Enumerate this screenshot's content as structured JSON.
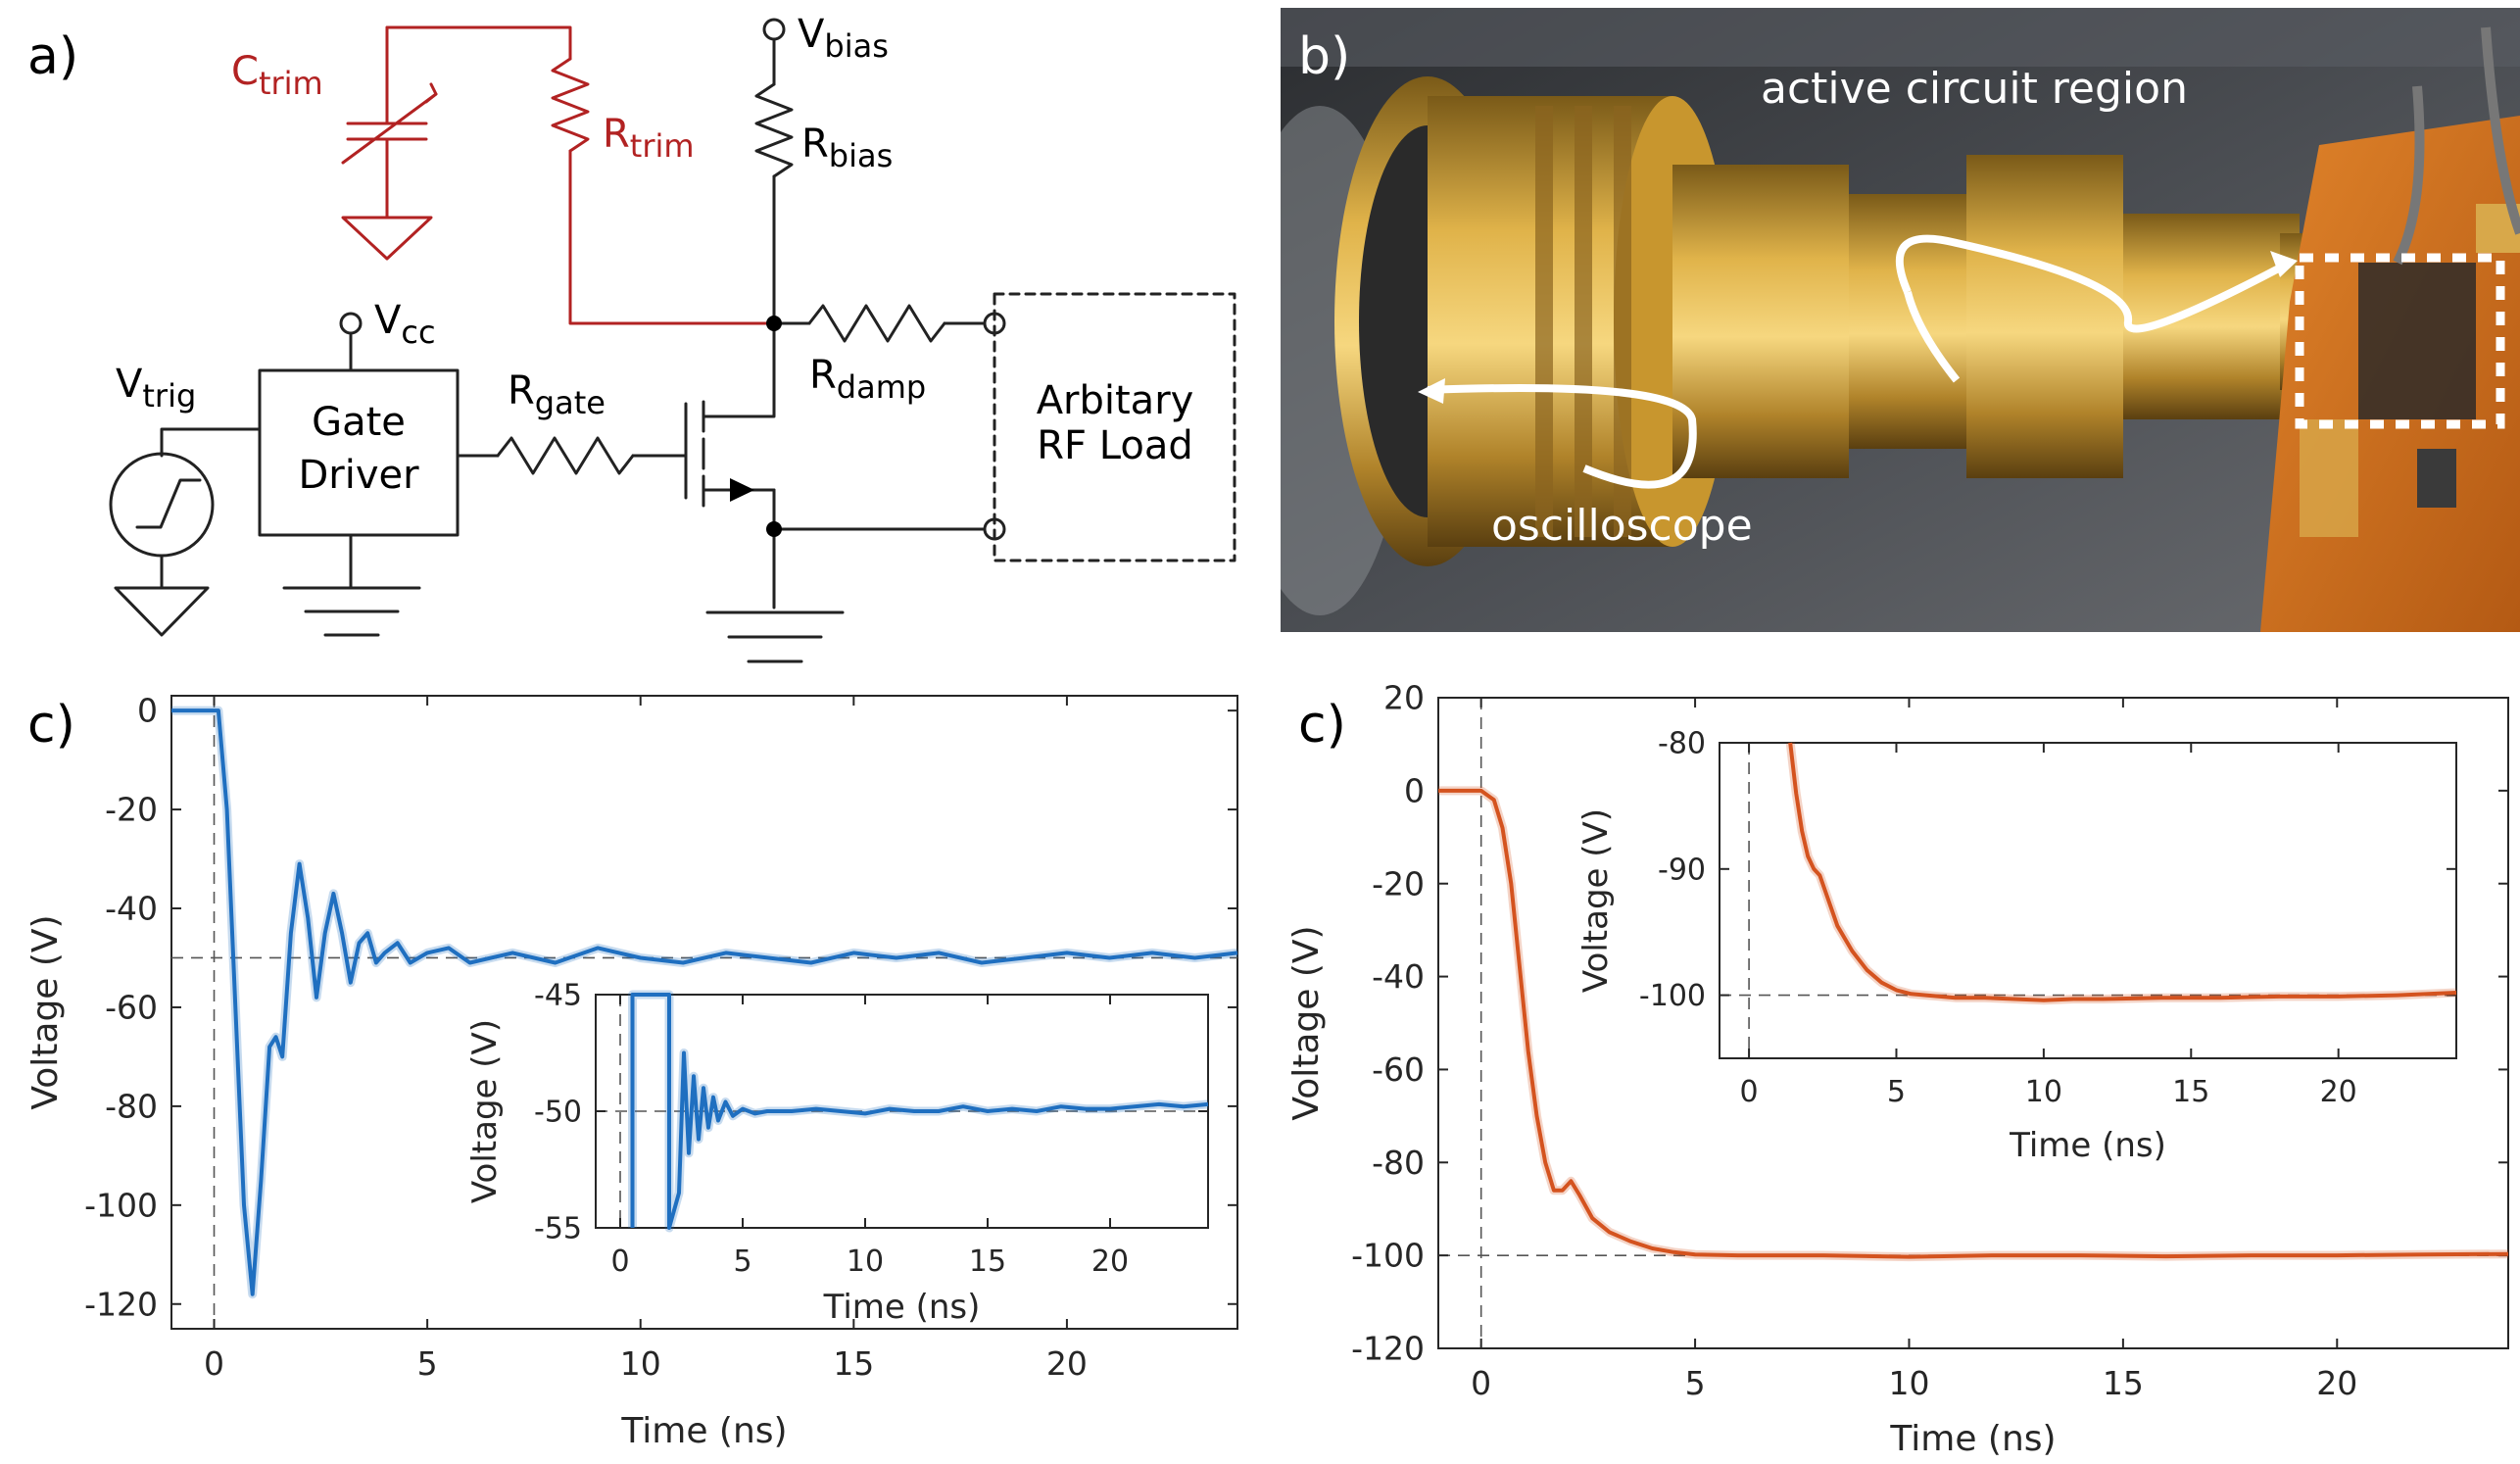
{
  "panels": {
    "a": "a)",
    "b": "b)",
    "c_left": "c)",
    "c_right": "c)"
  },
  "schematic": {
    "c_trim": {
      "main": "C",
      "sub": "trim"
    },
    "r_trim": {
      "main": "R",
      "sub": "trim"
    },
    "v_bias": {
      "main": "V",
      "sub": "bias"
    },
    "r_bias": {
      "main": "R",
      "sub": "bias"
    },
    "v_cc": {
      "main": "V",
      "sub": "cc"
    },
    "v_trig": {
      "main": "V",
      "sub": "trig"
    },
    "gate_driver": [
      "Gate",
      "Driver"
    ],
    "r_gate": {
      "main": "R",
      "sub": "gate"
    },
    "r_damp": {
      "main": "R",
      "sub": "damp"
    },
    "load": [
      "Arbitary",
      "RF Load"
    ],
    "colors": {
      "trim": "#b22222",
      "wire": "#222222"
    }
  },
  "photo": {
    "label_active": "active circuit region",
    "label_scope": "oscilloscope",
    "icon": "circuit-board-photo"
  },
  "chart_data": [
    {
      "type": "line",
      "id": "left-main",
      "xlabel": "Time (ns)",
      "ylabel": "Voltage (V)",
      "xlim": [
        -1,
        24
      ],
      "ylim": [
        -125,
        3
      ],
      "xticks": [
        0,
        5,
        10,
        15,
        20
      ],
      "yticks": [
        0,
        -20,
        -40,
        -60,
        -80,
        -100,
        -120
      ],
      "color": "#1f6fc0",
      "reference_lines": {
        "x": 0,
        "y": -50
      },
      "series": [
        {
          "x": [
            -1,
            -0.2,
            0.1,
            0.3,
            0.5,
            0.7,
            0.9,
            1.1,
            1.3,
            1.45,
            1.6,
            1.8,
            2.0,
            2.2,
            2.4,
            2.6,
            2.8,
            3.0,
            3.2,
            3.4,
            3.6,
            3.8,
            4.0,
            4.3,
            4.6,
            5.0,
            5.5,
            6,
            7,
            8,
            9,
            10,
            11,
            12,
            13,
            14,
            15,
            16,
            17,
            18,
            19,
            20,
            21,
            22,
            23,
            24
          ],
          "y": [
            0,
            0,
            0,
            -20,
            -60,
            -100,
            -118,
            -95,
            -68,
            -66,
            -70,
            -45,
            -31,
            -42,
            -58,
            -45,
            -37,
            -45,
            -55,
            -47,
            -45,
            -51,
            -49,
            -47,
            -51,
            -49,
            -48,
            -51,
            -49,
            -51,
            -48,
            -50,
            -51,
            -49,
            -50,
            -51,
            -49,
            -50,
            -49,
            -51,
            -50,
            -49,
            -50,
            -49,
            -50,
            -49
          ]
        }
      ]
    },
    {
      "type": "line",
      "id": "left-inset",
      "xlabel": "Time (ns)",
      "ylabel": "Voltage (V)",
      "xlim": [
        -1,
        24
      ],
      "ylim": [
        -55,
        -45
      ],
      "xticks": [
        0,
        5,
        10,
        15,
        20
      ],
      "yticks": [
        -45,
        -50,
        -55
      ],
      "color": "#1f6fc0",
      "reference_lines": {
        "x": 0,
        "y": -50
      },
      "series": [
        {
          "x": [
            0.5,
            0.5,
            2.0,
            2.0,
            2.4,
            2.6,
            2.8,
            3.0,
            3.2,
            3.4,
            3.6,
            3.8,
            4.0,
            4.3,
            4.6,
            5.0,
            5.5,
            6,
            7,
            8,
            9,
            10,
            11,
            12,
            13,
            14,
            15,
            16,
            17,
            18,
            19,
            20,
            21,
            22,
            23,
            24
          ],
          "y": [
            -56,
            -44,
            -44,
            -56,
            -53.5,
            -47.5,
            -51.8,
            -48.5,
            -51.2,
            -49.0,
            -50.7,
            -49.4,
            -50.4,
            -49.6,
            -50.2,
            -49.9,
            -50.1,
            -50.0,
            -50.0,
            -49.9,
            -50.0,
            -50.1,
            -49.9,
            -50.0,
            -50.0,
            -49.8,
            -50.0,
            -49.9,
            -50.0,
            -49.8,
            -49.9,
            -49.9,
            -49.8,
            -49.7,
            -49.8,
            -49.7
          ]
        }
      ]
    },
    {
      "type": "line",
      "id": "right-main",
      "xlabel": "Time (ns)",
      "ylabel": "Voltage (V)",
      "xlim": [
        -1,
        24
      ],
      "ylim": [
        -120,
        20
      ],
      "xticks": [
        0,
        5,
        10,
        15,
        20
      ],
      "yticks": [
        20,
        0,
        -20,
        -40,
        -60,
        -80,
        -100,
        -120
      ],
      "color": "#d4531f",
      "reference_lines": {
        "x": 0,
        "y": -100
      },
      "series": [
        {
          "x": [
            -1,
            0,
            0.3,
            0.5,
            0.7,
            0.9,
            1.1,
            1.3,
            1.5,
            1.7,
            1.9,
            2.1,
            2.3,
            2.6,
            3.0,
            3.5,
            4.0,
            4.5,
            5.0,
            6,
            7,
            8,
            10,
            12,
            14,
            16,
            18,
            20,
            22,
            24
          ],
          "y": [
            0,
            0,
            -2,
            -8,
            -20,
            -38,
            -56,
            -70,
            -80,
            -86,
            -86,
            -84,
            -87,
            -92,
            -95,
            -97,
            -98.5,
            -99.3,
            -99.8,
            -100,
            -100,
            -100,
            -100.3,
            -100,
            -100,
            -100.2,
            -100,
            -100,
            -99.8,
            -99.7
          ]
        }
      ]
    },
    {
      "type": "line",
      "id": "right-inset",
      "xlabel": "Time (ns)",
      "ylabel": "Voltage (V)",
      "xlim": [
        -1,
        24
      ],
      "ylim": [
        -105,
        -80
      ],
      "xticks": [
        0,
        5,
        10,
        15,
        20
      ],
      "yticks": [
        -80,
        -90,
        -100
      ],
      "color": "#d4531f",
      "reference_lines": {
        "x": 0,
        "y": -100
      },
      "series": [
        {
          "x": [
            1.4,
            1.5,
            1.6,
            1.8,
            2.0,
            2.2,
            2.4,
            2.7,
            3.0,
            3.5,
            4.0,
            4.5,
            5.0,
            5.5,
            6,
            7,
            8,
            9,
            10,
            11,
            12,
            14,
            16,
            18,
            20,
            22,
            24
          ],
          "y": [
            -80,
            -82,
            -84,
            -87,
            -89,
            -90,
            -90.5,
            -92.5,
            -94.5,
            -96.5,
            -98,
            -99,
            -99.6,
            -99.9,
            -100,
            -100.2,
            -100.2,
            -100.3,
            -100.4,
            -100.3,
            -100.3,
            -100.2,
            -100.2,
            -100.1,
            -100.1,
            -100,
            -99.8
          ]
        }
      ]
    }
  ]
}
